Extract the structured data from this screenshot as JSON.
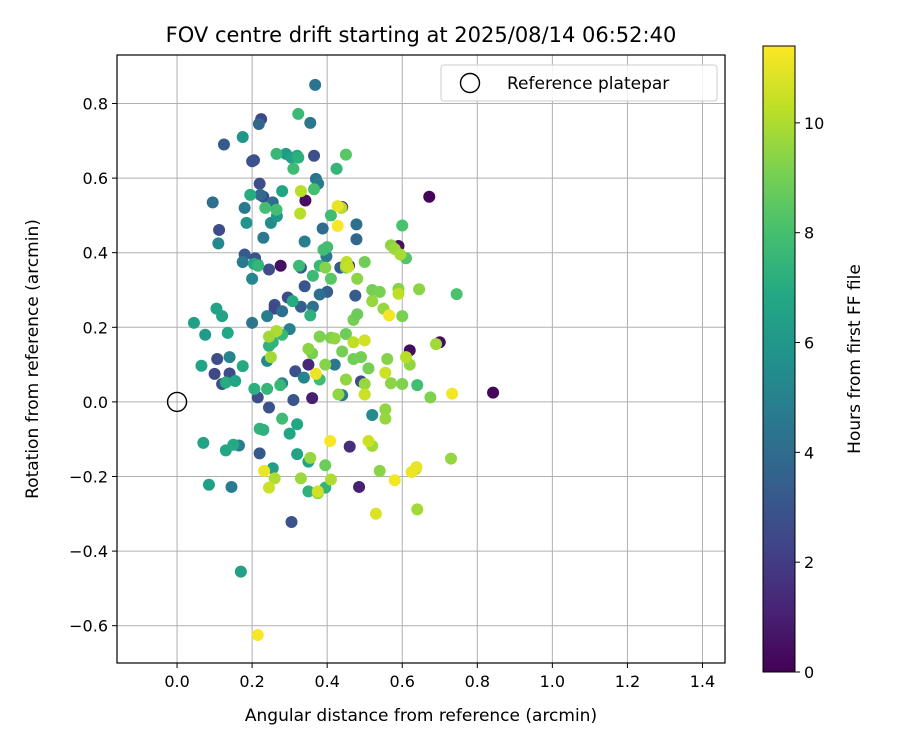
{
  "chart_data": {
    "type": "scatter",
    "title": "FOV centre drift starting at 2025/08/14 06:52:40",
    "xlabel": "Angular distance from reference (arcmin)",
    "ylabel": "Rotation from reference (arcmin)",
    "xlim": [
      -0.16,
      1.46
    ],
    "ylim": [
      -0.7,
      0.93
    ],
    "x_ticks": [
      0.0,
      0.2,
      0.4,
      0.6,
      0.8,
      1.0,
      1.2,
      1.4
    ],
    "x_tick_labels": [
      "0.0",
      "0.2",
      "0.4",
      "0.6",
      "0.8",
      "1.0",
      "1.2",
      "1.4"
    ],
    "y_ticks": [
      -0.6,
      -0.4,
      -0.2,
      0.0,
      0.2,
      0.4,
      0.6,
      0.8
    ],
    "y_tick_labels": [
      "−0.6",
      "−0.4",
      "−0.2",
      "0.0",
      "0.2",
      "0.4",
      "0.6",
      "0.8"
    ],
    "grid": true,
    "legend": {
      "placement": "top-right",
      "label": "Reference platepar"
    },
    "reference_point": {
      "x": 0.0,
      "y": 0.0
    },
    "colorbar": {
      "label": "Hours from first FF file",
      "min": 0,
      "max": 11.4,
      "ticks": [
        0,
        2,
        4,
        6,
        8,
        10
      ],
      "tick_labels": [
        "0",
        "2",
        "4",
        "6",
        "8",
        "10"
      ],
      "colormap": "viridis"
    },
    "series": [
      {
        "points": [
          [
            0.672,
            0.55,
            0.1
          ],
          [
            0.842,
            0.025,
            0.2
          ],
          [
            0.62,
            0.138,
            0.4
          ],
          [
            0.59,
            0.418,
            0.5
          ],
          [
            0.44,
            0.522,
            0.6
          ],
          [
            0.276,
            0.365,
            0.5
          ],
          [
            0.7,
            0.16,
            0.4
          ],
          [
            0.342,
            0.54,
            0.5
          ],
          [
            0.36,
            0.01,
            1.0
          ],
          [
            0.485,
            -0.228,
            1.0
          ],
          [
            0.46,
            -0.12,
            1.5
          ],
          [
            0.35,
            0.1,
            1.3
          ],
          [
            0.458,
            0.365,
            0.2
          ],
          [
            0.224,
            0.758,
            2.4
          ],
          [
            0.205,
            0.648,
            2.7
          ],
          [
            0.22,
            0.585,
            2.6
          ],
          [
            0.23,
            0.55,
            2.8
          ],
          [
            0.365,
            0.66,
            2.8
          ],
          [
            0.112,
            0.461,
            2.6
          ],
          [
            0.208,
            0.385,
            2.9
          ],
          [
            0.245,
            0.355,
            2.7
          ],
          [
            0.26,
            0.26,
            2.9
          ],
          [
            0.295,
            0.28,
            2.6
          ],
          [
            0.26,
            0.25,
            2.4
          ],
          [
            0.107,
            0.115,
            2.7
          ],
          [
            0.1,
            0.075,
            2.5
          ],
          [
            0.12,
            0.048,
            2.8
          ],
          [
            0.14,
            0.076,
            2.6
          ],
          [
            0.215,
            0.012,
            2.7
          ],
          [
            0.245,
            -0.015,
            2.9
          ],
          [
            0.31,
            0.005,
            3.0
          ],
          [
            0.315,
            0.082,
            2.8
          ],
          [
            0.34,
            0.31,
            3.0
          ],
          [
            0.305,
            -0.322,
            2.9
          ],
          [
            0.22,
            -0.138,
            3.2
          ],
          [
            0.49,
            0.055,
            2.6
          ],
          [
            0.33,
            0.36,
            3.2
          ],
          [
            0.4,
            0.295,
            3.4
          ],
          [
            0.475,
            0.285,
            3.3
          ],
          [
            0.435,
            0.36,
            3.3
          ],
          [
            0.125,
            0.69,
            3.2
          ],
          [
            0.2,
            0.645,
            2.9
          ],
          [
            0.18,
            0.395,
            3.2
          ],
          [
            0.33,
            0.255,
            3.4
          ],
          [
            0.218,
            0.745,
            3.8
          ],
          [
            0.368,
            0.85,
            4.4
          ],
          [
            0.355,
            0.748,
            4.5
          ],
          [
            0.222,
            0.555,
            3.9
          ],
          [
            0.255,
            0.535,
            4.1
          ],
          [
            0.37,
            0.598,
            4.3
          ],
          [
            0.376,
            0.585,
            4.7
          ],
          [
            0.388,
            0.465,
            4.0
          ],
          [
            0.478,
            0.436,
            3.8
          ],
          [
            0.478,
            0.476,
            4.2
          ],
          [
            0.398,
            0.39,
            4.6
          ],
          [
            0.34,
            0.43,
            4.9
          ],
          [
            0.23,
            0.44,
            4.6
          ],
          [
            0.11,
            0.425,
            5.3
          ],
          [
            0.175,
            0.375,
            4.6
          ],
          [
            0.215,
            0.368,
            4.8
          ],
          [
            0.2,
            0.33,
            5.2
          ],
          [
            0.25,
            0.48,
            5.5
          ],
          [
            0.24,
            0.23,
            4.8
          ],
          [
            0.28,
            0.243,
            4.1
          ],
          [
            0.38,
            0.288,
            4.2
          ],
          [
            0.362,
            0.255,
            4.3
          ],
          [
            0.3,
            0.195,
            5.0
          ],
          [
            0.2,
            0.212,
            4.5
          ],
          [
            0.42,
            0.1,
            4.5
          ],
          [
            0.44,
            0.018,
            4.6
          ],
          [
            0.338,
            0.065,
            5.1
          ],
          [
            0.28,
            0.05,
            5.0
          ],
          [
            0.18,
            0.52,
            4.6
          ],
          [
            0.52,
            -0.035,
            5.4
          ],
          [
            0.24,
            0.11,
            5.3
          ],
          [
            0.165,
            -0.117,
            4.8
          ],
          [
            0.145,
            -0.228,
            4.8
          ],
          [
            0.095,
            0.535,
            4.1
          ],
          [
            0.14,
            0.12,
            5.1
          ],
          [
            0.175,
            0.71,
            6.0
          ],
          [
            0.185,
            0.48,
            5.9
          ],
          [
            0.266,
            0.498,
            6.0
          ],
          [
            0.29,
            0.665,
            6.1
          ],
          [
            0.305,
            0.655,
            6.5
          ],
          [
            0.28,
            0.565,
            6.7
          ],
          [
            0.32,
            0.66,
            6.9
          ],
          [
            0.323,
            0.655,
            7.2
          ],
          [
            0.195,
            0.555,
            7.0
          ],
          [
            0.205,
            0.37,
            6.8
          ],
          [
            0.216,
            0.365,
            7.5
          ],
          [
            0.308,
            0.27,
            7.0
          ],
          [
            0.355,
            0.232,
            7.2
          ],
          [
            0.105,
            0.25,
            6.6
          ],
          [
            0.12,
            0.23,
            6.6
          ],
          [
            0.135,
            0.185,
            6.8
          ],
          [
            0.075,
            0.18,
            6.2
          ],
          [
            0.045,
            0.212,
            6.4
          ],
          [
            0.065,
            0.097,
            6.6
          ],
          [
            0.13,
            0.052,
            7.0
          ],
          [
            0.155,
            0.056,
            6.7
          ],
          [
            0.175,
            0.096,
            6.9
          ],
          [
            0.206,
            0.035,
            7.2
          ],
          [
            0.24,
            0.035,
            7.5
          ],
          [
            0.275,
            0.045,
            7.6
          ],
          [
            0.28,
            -0.045,
            7.8
          ],
          [
            0.3,
            -0.085,
            6.7
          ],
          [
            0.32,
            -0.06,
            6.8
          ],
          [
            0.32,
            -0.14,
            6.6
          ],
          [
            0.255,
            -0.178,
            6.3
          ],
          [
            0.35,
            -0.16,
            6.6
          ],
          [
            0.35,
            -0.24,
            7.3
          ],
          [
            0.395,
            -0.23,
            7.4
          ],
          [
            0.39,
            0.408,
            8.0
          ],
          [
            0.38,
            0.365,
            7.6
          ],
          [
            0.265,
            0.665,
            7.6
          ],
          [
            0.323,
            0.772,
            7.7
          ],
          [
            0.31,
            0.625,
            7.8
          ],
          [
            0.265,
            0.515,
            7.9
          ],
          [
            0.235,
            0.52,
            7.9
          ],
          [
            0.245,
            0.15,
            7.3
          ],
          [
            0.255,
            0.16,
            7.4
          ],
          [
            0.28,
            0.18,
            7.6
          ],
          [
            0.362,
            0.338,
            7.7
          ],
          [
            0.425,
            0.625,
            7.5
          ],
          [
            0.41,
            0.5,
            7.8
          ],
          [
            0.4,
            0.415,
            7.9
          ],
          [
            0.17,
            -0.455,
            6.5
          ],
          [
            0.07,
            -0.11,
            6.6
          ],
          [
            0.085,
            -0.222,
            6.4
          ],
          [
            0.13,
            -0.13,
            6.8
          ],
          [
            0.15,
            -0.115,
            6.9
          ],
          [
            0.22,
            -0.072,
            7.4
          ],
          [
            0.23,
            -0.075,
            7.3
          ],
          [
            0.6,
            0.473,
            8.1
          ],
          [
            0.64,
            0.045,
            7.9
          ],
          [
            0.38,
            0.06,
            7.8
          ],
          [
            0.745,
            0.289,
            8.1
          ],
          [
            0.45,
            0.663,
            8.4
          ],
          [
            0.365,
            0.57,
            8.0
          ],
          [
            0.325,
            0.365,
            7.7
          ],
          [
            0.61,
            0.385,
            8.3
          ],
          [
            0.41,
            0.33,
            8.4
          ],
          [
            0.45,
            0.36,
            8.9
          ],
          [
            0.52,
            0.3,
            9.0
          ],
          [
            0.45,
            0.182,
            8.8
          ],
          [
            0.47,
            0.115,
            8.9
          ],
          [
            0.49,
            0.12,
            9.0
          ],
          [
            0.51,
            0.09,
            9.0
          ],
          [
            0.395,
            0.1,
            9.3
          ],
          [
            0.41,
            0.172,
            9.1
          ],
          [
            0.38,
            0.175,
            9.2
          ],
          [
            0.36,
            0.13,
            9.0
          ],
          [
            0.35,
            0.142,
            9.4
          ],
          [
            0.42,
            0.17,
            9.5
          ],
          [
            0.45,
            0.06,
            9.5
          ],
          [
            0.43,
            0.02,
            9.5
          ],
          [
            0.5,
            0.048,
            9.6
          ],
          [
            0.55,
            0.25,
            9.6
          ],
          [
            0.48,
            0.33,
            9.4
          ],
          [
            0.47,
            0.22,
            9.0
          ],
          [
            0.48,
            0.235,
            8.8
          ],
          [
            0.5,
            0.375,
            8.9
          ],
          [
            0.57,
            0.42,
            9.4
          ],
          [
            0.58,
            0.41,
            9.7
          ],
          [
            0.595,
            0.395,
            9.9
          ],
          [
            0.59,
            0.303,
            9.3
          ],
          [
            0.6,
            0.23,
            9.1
          ],
          [
            0.645,
            0.302,
            9.4
          ],
          [
            0.62,
            0.1,
            9.5
          ],
          [
            0.6,
            0.048,
            9.2
          ],
          [
            0.675,
            0.012,
            9.2
          ],
          [
            0.69,
            0.155,
            9.8
          ],
          [
            0.54,
            0.295,
            9.1
          ],
          [
            0.52,
            0.27,
            9.6
          ],
          [
            0.56,
            0.115,
            9.3
          ],
          [
            0.57,
            0.05,
            9.4
          ],
          [
            0.555,
            -0.02,
            9.5
          ],
          [
            0.555,
            -0.045,
            9.6
          ],
          [
            0.54,
            -0.185,
            9.4
          ],
          [
            0.52,
            -0.118,
            9.8
          ],
          [
            0.5,
            0.02,
            9.8
          ],
          [
            0.375,
            -0.245,
            9.6
          ],
          [
            0.395,
            -0.17,
            8.8
          ],
          [
            0.355,
            -0.15,
            9.6
          ],
          [
            0.33,
            -0.205,
            9.7
          ],
          [
            0.26,
            -0.205,
            10.0
          ],
          [
            0.41,
            -0.208,
            10.0
          ],
          [
            0.61,
            0.12,
            10.2
          ],
          [
            0.636,
            -0.18,
            10.1
          ],
          [
            0.64,
            -0.288,
            9.8
          ],
          [
            0.73,
            -0.152,
            9.6
          ],
          [
            0.33,
            0.565,
            10.2
          ],
          [
            0.328,
            0.505,
            10.2
          ],
          [
            0.438,
            0.52,
            10.1
          ],
          [
            0.452,
            0.375,
            10.3
          ],
          [
            0.45,
            0.365,
            10.1
          ],
          [
            0.47,
            0.16,
            10.3
          ],
          [
            0.59,
            0.29,
            10.3
          ],
          [
            0.5,
            0.165,
            10.6
          ],
          [
            0.5,
            0.02,
            10.5
          ],
          [
            0.265,
            0.19,
            10.0
          ],
          [
            0.25,
            0.12,
            9.8
          ],
          [
            0.245,
            0.175,
            9.8
          ],
          [
            0.245,
            -0.23,
            10.5
          ],
          [
            0.53,
            -0.3,
            10.8
          ],
          [
            0.555,
            0.078,
            10.5
          ],
          [
            0.51,
            -0.105,
            10.5
          ],
          [
            0.58,
            -0.21,
            11.2
          ],
          [
            0.565,
            0.232,
            11.2
          ],
          [
            0.638,
            -0.175,
            11.0
          ],
          [
            0.625,
            -0.188,
            11.1
          ],
          [
            0.408,
            -0.105,
            11.3
          ],
          [
            0.733,
            0.022,
            11.2
          ],
          [
            0.428,
            0.472,
            11.3
          ],
          [
            0.428,
            0.525,
            11.0
          ],
          [
            0.37,
            0.075,
            11.1
          ],
          [
            0.232,
            -0.185,
            11.1
          ],
          [
            0.215,
            -0.625,
            11.3
          ],
          [
            0.375,
            -0.24,
            10.6
          ],
          [
            0.44,
            0.135,
            9.0
          ],
          [
            0.395,
            0.36,
            9.3
          ],
          [
            0.456,
            0.362,
            10.4
          ]
        ]
      }
    ]
  }
}
